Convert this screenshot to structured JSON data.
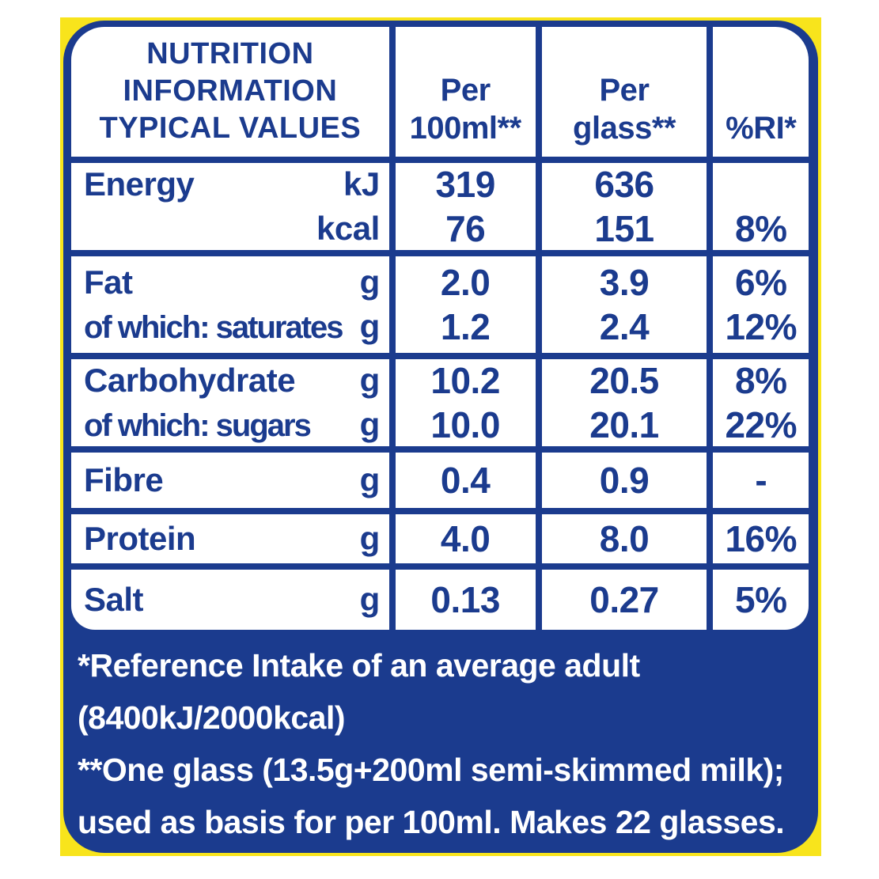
{
  "colors": {
    "panel_blue": "#1b3b8e",
    "package_yellow": "#f8e41c",
    "cell_white": "#ffffff"
  },
  "table": {
    "header": {
      "title_lines": [
        "NUTRITION",
        "INFORMATION",
        "TYPICAL VALUES"
      ],
      "per_100ml_lines": [
        "Per",
        "100ml**"
      ],
      "per_glass_lines": [
        "Per",
        "glass**"
      ],
      "ri": "%RI*"
    },
    "rows": [
      {
        "label": [
          {
            "name": "Energy",
            "unit": "kJ"
          },
          {
            "name": "",
            "unit": "kcal"
          }
        ],
        "per_100ml": [
          "319",
          "76"
        ],
        "per_glass": [
          "636",
          "151"
        ],
        "ri": [
          "",
          "8%"
        ]
      },
      {
        "label": [
          {
            "name": "Fat",
            "unit": "g"
          },
          {
            "name": "of which: saturates",
            "unit": "g"
          }
        ],
        "per_100ml": [
          "2.0",
          "1.2"
        ],
        "per_glass": [
          "3.9",
          "2.4"
        ],
        "ri": [
          "6%",
          "12%"
        ]
      },
      {
        "label": [
          {
            "name": "Carbohydrate",
            "unit": "g"
          },
          {
            "name": "of which: sugars",
            "unit": "g"
          }
        ],
        "per_100ml": [
          "10.2",
          "10.0"
        ],
        "per_glass": [
          "20.5",
          "20.1"
        ],
        "ri": [
          "8%",
          "22%"
        ]
      },
      {
        "label": [
          {
            "name": "Fibre",
            "unit": "g"
          }
        ],
        "per_100ml": [
          "0.4"
        ],
        "per_glass": [
          "0.9"
        ],
        "ri": [
          "-"
        ]
      },
      {
        "label": [
          {
            "name": "Protein",
            "unit": "g"
          }
        ],
        "per_100ml": [
          "4.0"
        ],
        "per_glass": [
          "8.0"
        ],
        "ri": [
          "16%"
        ]
      },
      {
        "label": [
          {
            "name": "Salt",
            "unit": "g"
          }
        ],
        "per_100ml": [
          "0.13"
        ],
        "per_glass": [
          "0.27"
        ],
        "ri": [
          "5%"
        ]
      }
    ]
  },
  "footnotes": {
    "lines": [
      "*Reference Intake of an average adult",
      "(8400kJ/2000kcal)",
      "**One glass (13.5g+200ml semi-skimmed milk);",
      "used as basis for per 100ml. Makes 22 glasses."
    ]
  },
  "chart_data": {
    "type": "table",
    "title": "NUTRITION INFORMATION TYPICAL VALUES",
    "columns": [
      "Typical values",
      "Per 100ml**",
      "Per glass**",
      "%RI*"
    ],
    "rows": [
      [
        "Energy kJ",
        "319",
        "636",
        ""
      ],
      [
        "Energy kcal",
        "76",
        "151",
        "8%"
      ],
      [
        "Fat g",
        "2.0",
        "3.9",
        "6%"
      ],
      [
        "of which: saturates g",
        "1.2",
        "2.4",
        "12%"
      ],
      [
        "Carbohydrate g",
        "10.2",
        "20.5",
        "8%"
      ],
      [
        "of which: sugars g",
        "10.0",
        "20.1",
        "22%"
      ],
      [
        "Fibre g",
        "0.4",
        "0.9",
        "-"
      ],
      [
        "Protein g",
        "4.0",
        "8.0",
        "16%"
      ],
      [
        "Salt g",
        "0.13",
        "0.27",
        "5%"
      ]
    ],
    "footnotes": [
      "*Reference Intake of an average adult (8400kJ/2000kcal)",
      "**One glass (13.5g+200ml semi-skimmed milk); used as basis for per 100ml. Makes 22 glasses."
    ]
  }
}
